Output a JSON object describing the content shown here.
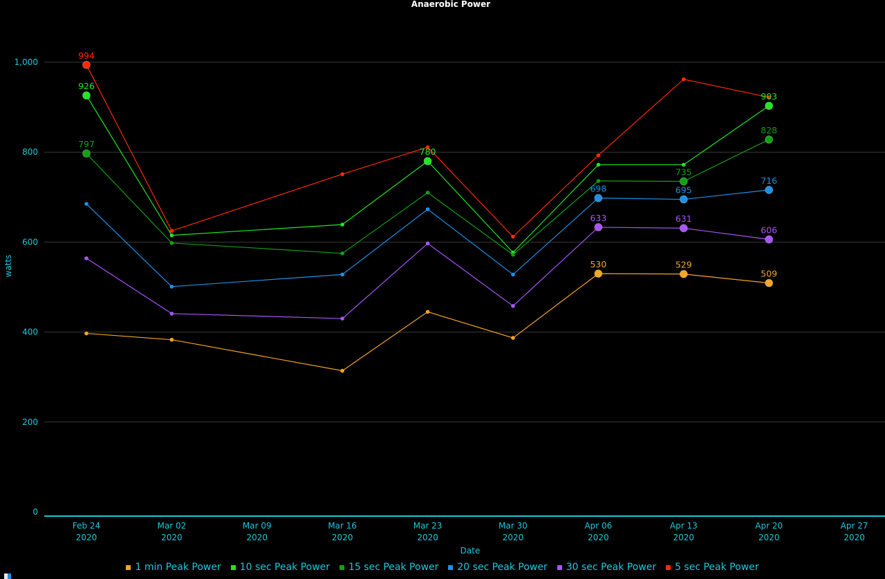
{
  "chart_data": {
    "type": "line",
    "title": "Anaerobic Power",
    "xlabel": "Date",
    "ylabel": "watts",
    "ylim": [
      0,
      1000
    ],
    "yticks": [
      0,
      200,
      400,
      600,
      800,
      1000
    ],
    "ytick_labels": [
      "0",
      "200",
      "400",
      "600",
      "800",
      "1,000"
    ],
    "xticks": [
      {
        "line1": "Feb 24",
        "line2": "2020"
      },
      {
        "line1": "Mar 02",
        "line2": "2020"
      },
      {
        "line1": "Mar 09",
        "line2": "2020"
      },
      {
        "line1": "Mar 16",
        "line2": "2020"
      },
      {
        "line1": "Mar 23",
        "line2": "2020"
      },
      {
        "line1": "Mar 30",
        "line2": "2020"
      },
      {
        "line1": "Apr 06",
        "line2": "2020"
      },
      {
        "line1": "Apr 13",
        "line2": "2020"
      },
      {
        "line1": "Apr 20",
        "line2": "2020"
      },
      {
        "line1": "Apr 27",
        "line2": "2020"
      }
    ],
    "x": [
      "2020-02-24",
      "2020-03-02",
      "2020-03-16",
      "2020-03-23",
      "2020-03-30",
      "2020-04-06",
      "2020-04-13",
      "2020-04-20"
    ],
    "grid": true,
    "legend_position": "bottom",
    "series": [
      {
        "name": "1 min Peak Power",
        "color": "#f5a623",
        "values": [
          397,
          383,
          314,
          445,
          387,
          530,
          529,
          509
        ],
        "labeled": [
          5,
          6,
          7
        ],
        "labels": [
          "530",
          "529",
          "509"
        ]
      },
      {
        "name": "10 sec Peak Power",
        "color": "#22e622",
        "values": [
          926,
          615,
          639,
          780,
          577,
          772,
          772,
          903
        ],
        "labeled": [
          0,
          3,
          7
        ],
        "labels": [
          "926",
          "780",
          "903"
        ]
      },
      {
        "name": "15 sec Peak Power",
        "color": "#12a012",
        "values": [
          797,
          598,
          575,
          710,
          572,
          736,
          735,
          828
        ],
        "labeled": [
          0,
          6,
          7
        ],
        "labels": [
          "797",
          "735",
          "828"
        ]
      },
      {
        "name": "20 sec Peak Power",
        "color": "#1e90e6",
        "values": [
          685,
          501,
          528,
          673,
          528,
          698,
          695,
          716
        ],
        "labeled": [
          5,
          6,
          7
        ],
        "labels": [
          "698",
          "695",
          "716"
        ]
      },
      {
        "name": "30 sec Peak Power",
        "color": "#a855f7",
        "values": [
          564,
          441,
          430,
          597,
          458,
          633,
          631,
          606
        ],
        "labeled": [
          5,
          6,
          7
        ],
        "labels": [
          "633",
          "631",
          "606"
        ]
      },
      {
        "name": "5 sec Peak Power",
        "color": "#ff2a00",
        "values": [
          994,
          625,
          751,
          811,
          612,
          793,
          962,
          922
        ],
        "labeled": [
          0
        ],
        "labels": [
          "994"
        ]
      }
    ]
  }
}
